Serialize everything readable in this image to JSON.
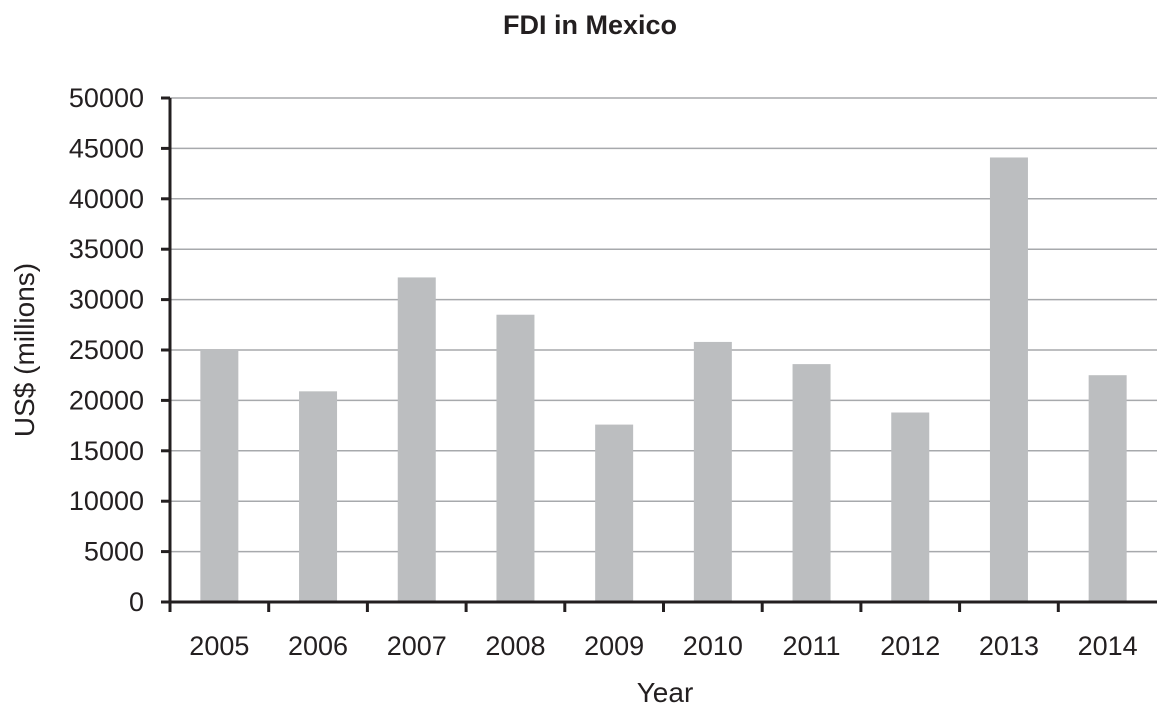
{
  "chart_data": {
    "type": "bar",
    "title": "FDI in Mexico",
    "xlabel": "Year",
    "ylabel": "US$ (millions)",
    "categories": [
      "2005",
      "2006",
      "2007",
      "2008",
      "2009",
      "2010",
      "2011",
      "2012",
      "2013",
      "2014"
    ],
    "values": [
      25000,
      20900,
      32200,
      28500,
      17600,
      25800,
      23600,
      18800,
      44100,
      22500
    ],
    "ylim": [
      0,
      50000
    ],
    "yticks": [
      "0",
      "5000",
      "10000",
      "15000",
      "20000",
      "25000",
      "30000",
      "35000",
      "40000",
      "45000",
      "50000"
    ],
    "grid": true,
    "legend": "none",
    "bar_color": "#bcbec0",
    "grid_color": "#a7a9ac",
    "axis_color": "#231f20"
  }
}
